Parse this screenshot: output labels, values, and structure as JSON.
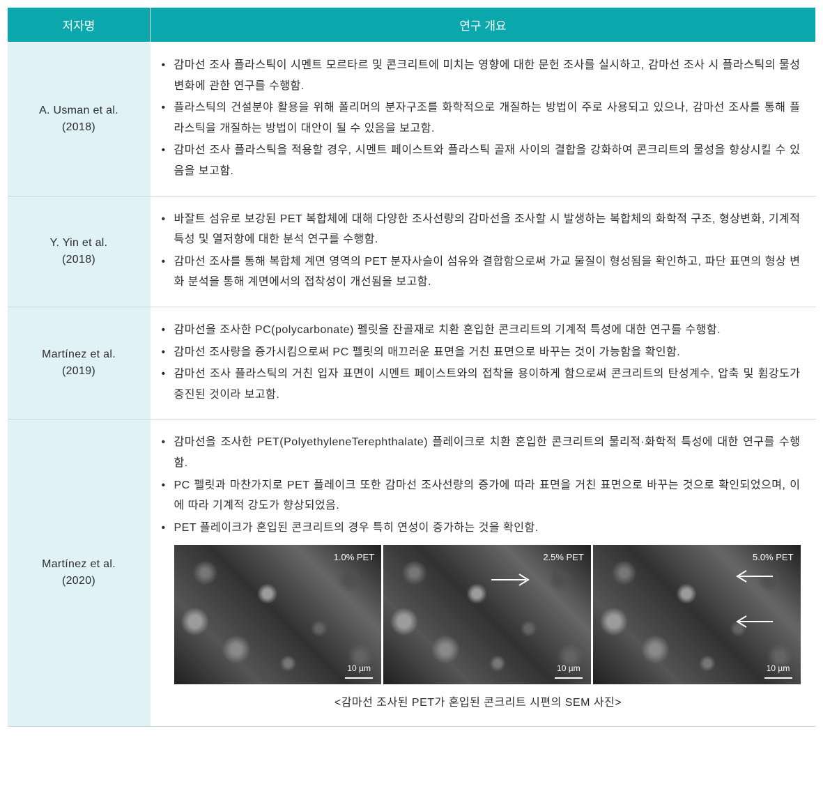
{
  "header": {
    "author_col": "저자명",
    "summary_col": "연구 개요"
  },
  "rows": [
    {
      "author": "A. Usman et al.\n(2018)",
      "bullets": [
        "감마선 조사 플라스틱이 시멘트 모르타르 및 콘크리트에 미치는 영향에 대한 문헌 조사를 실시하고, 감마선 조사 시 플라스틱의 물성 변화에 관한 연구를 수행함.",
        "플라스틱의 건설분야 활용을 위해 폴리머의 분자구조를 화학적으로 개질하는 방법이 주로 사용되고 있으나, 감마선 조사를 통해 플라스틱을 개질하는 방법이 대안이 될 수 있음을 보고함.",
        "감마선 조사 플라스틱을 적용할 경우, 시멘트 페이스트와 플라스틱 골재 사이의 결합을 강화하여 콘크리트의 물성을 향상시킬 수 있음을 보고함."
      ]
    },
    {
      "author": "Y. Yin et al.\n(2018)",
      "bullets": [
        "바잘트 섬유로 보강된 PET 복합체에 대해 다양한 조사선량의 감마선을 조사할 시 발생하는 복합체의 화학적 구조, 형상변화, 기계적 특성 및 열저항에 대한 분석 연구를 수행함.",
        "감마선 조사를 통해 복합체 계면 영역의 PET 분자사슬이 섬유와 결합함으로써 가교 물질이 형성됨을 확인하고, 파단 표면의 형상 변화 분석을 통해 계면에서의 접착성이 개선됨을 보고함."
      ]
    },
    {
      "author": "Martínez et al.\n(2019)",
      "bullets": [
        "감마선을 조사한 PC(polycarbonate) 펠릿을 잔골재로 치환 혼입한 콘크리트의 기계적 특성에 대한 연구를 수행함.",
        "감마선 조사량을 증가시킴으로써 PC 펠릿의 매끄러운 표면을 거친 표면으로 바꾸는 것이 가능함을 확인함.",
        "감마선 조사 플라스틱의 거친 입자 표면이 시멘트 페이스트와의 접착을 용이하게 함으로써 콘크리트의 탄성계수, 압축 및 휨강도가 증진된 것이라 보고함."
      ]
    },
    {
      "author": "Martínez et al.\n(2020)",
      "bullets": [
        "감마선을 조사한 PET(PolyethyleneTerephthalate) 플레이크로 치환 혼입한 콘크리트의 물리적·화학적 특성에 대한 연구를 수행함.",
        "PC 펠릿과 마찬가지로 PET 플레이크 또한 감마선 조사선량의 증가에 따라 표면을 거친 표면으로 바꾸는 것으로 확인되었으며, 이에 따라 기계적 강도가 향상되었음.",
        "PET 플레이크가 혼입된 콘크리트의 경우 특히 연성이 증가하는 것을 확인함."
      ],
      "sem_images": [
        {
          "label": "1.0% PET",
          "scale": "10 µm"
        },
        {
          "label": "2.5% PET",
          "scale": "10 µm"
        },
        {
          "label": "5.0% PET",
          "scale": "10 µm"
        }
      ],
      "sem_caption": "<감마선 조사된 PET가 혼입된 콘크리트 시편의 SEM 사진>"
    }
  ],
  "colors": {
    "header_bg": "#0aa8ad",
    "header_text": "#ffffff",
    "author_bg": "#e0f2f5",
    "border": "#c8d8db",
    "text": "#2d2d2d"
  }
}
